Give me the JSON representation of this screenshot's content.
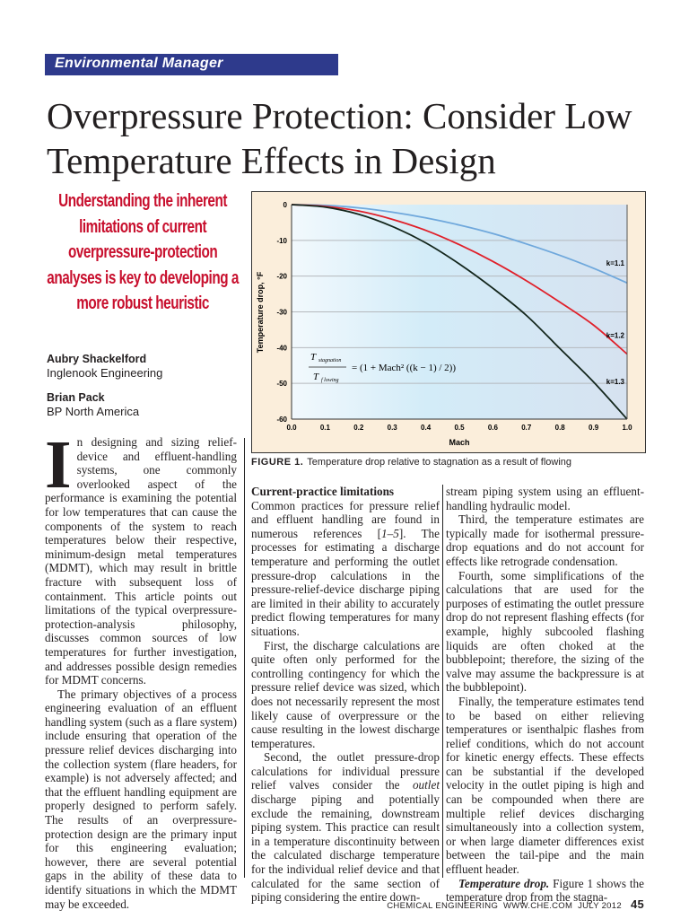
{
  "section_banner": "Environmental Manager",
  "title": "Overpressure Protection: Consider Low Temperature Effects in Design",
  "deck": "Understanding the inherent limitations of current overpressure-protection analyses is key to developing a more robust heuristic",
  "authors": [
    {
      "name": "Aubry Shackelford",
      "affiliation": "Inglenook Engineering"
    },
    {
      "name": "Brian Pack",
      "affiliation": "BP North America"
    }
  ],
  "figure": {
    "label": "FIGURE 1.",
    "caption": "Temperature drop relative to stagnation as a result of flowing",
    "equation": {
      "lhs_num": "T",
      "lhs_num_sub": "stagnation",
      "lhs_den": "T",
      "lhs_den_sub": "f lowing",
      "rhs": "= (1 + Mach² ((k − 1) / 2))"
    }
  },
  "chart_data": {
    "type": "line",
    "title": "",
    "xlabel": "Mach",
    "ylabel": "Temperature drop, °F",
    "xlim": [
      0.0,
      1.0
    ],
    "ylim": [
      -60,
      0
    ],
    "xticks": [
      "0.0",
      "0.1",
      "0.2",
      "0.3",
      "0.4",
      "0.5",
      "0.6",
      "0.7",
      "0.8",
      "0.9",
      "1.0"
    ],
    "yticks": [
      "0",
      "-10",
      "-20",
      "-30",
      "-40",
      "-50",
      "-60"
    ],
    "grid": "horizontal",
    "x": [
      0.0,
      0.1,
      0.2,
      0.3,
      0.4,
      0.5,
      0.6,
      0.7,
      0.8,
      0.9,
      1.0
    ],
    "series": [
      {
        "name": "k=1.1",
        "color": "#6fa8dc",
        "values": [
          0,
          -0.2,
          -0.9,
          -2.1,
          -3.7,
          -5.7,
          -8.1,
          -11.0,
          -14.2,
          -17.8,
          -21.9
        ]
      },
      {
        "name": "k=1.2",
        "color": "#e0202a",
        "values": [
          0,
          -0.5,
          -1.8,
          -4.1,
          -7.2,
          -11.2,
          -15.9,
          -21.3,
          -27.3,
          -33.7,
          -41.8
        ]
      },
      {
        "name": "k=1.3",
        "color": "#13261c",
        "values": [
          0,
          -0.7,
          -2.7,
          -6.1,
          -10.7,
          -16.6,
          -23.4,
          -31.0,
          -40.3,
          -49.6,
          -60.0
        ]
      }
    ]
  },
  "body": {
    "dropcap": "I",
    "col1": [
      [
        {
          "t": "n designing and sizing relief-device and effluent-handling systems, one commonly overlooked aspect of the performance is examining the potential for low temperatures that can cause the components of the system to reach temperatures below their respective, minimum-design metal temperatures (MDMT), which may result in brittle fracture with subsequent loss of containment. This article points out limitations of the typical overpressure-protection-analysis philosophy, discusses common sources of low temperatures for further investigation, and addresses possible design remedies for MDMT concerns."
        }
      ],
      [
        {
          "t": "The primary objectives of a process engineering evaluation of an effluent handling system (such as a flare system) include ensuring that operation of the pressure relief devices discharging into the collection system (flare headers, for example) is not adversely affected; and that the effluent handling equipment are properly designed to perform safely. The results of an overpressure-protection design are the primary input for this engineering evaluation; however, there are several potential gaps in the ability of these data to identify situations in which the MDMT may be exceeded."
        }
      ]
    ],
    "col2_heading": "Current-practice limitations",
    "col2": [
      [
        {
          "t": "Common practices for pressure relief and effluent handling are found in numerous references ["
        },
        {
          "t": "1–5",
          "i": true
        },
        {
          "t": "]. The processes for estimating a discharge temperature and performing the outlet pressure-drop calculations in the pressure-relief-device discharge piping are limited in their ability to accurately predict flowing temperatures for many situations."
        }
      ],
      [
        {
          "t": "First, the discharge calculations are quite often only performed for the controlling contingency for which the pressure relief device was sized, which does not necessarily represent the most likely cause of overpressure or the cause resulting in the lowest discharge temperatures."
        }
      ],
      [
        {
          "t": "Second, the outlet pressure-drop calculations for individual pressure relief valves consider the "
        },
        {
          "t": "outlet",
          "i": true
        },
        {
          "t": " discharge piping and potentially exclude the remaining, downstream piping system. This practice can result in a temperature discontinuity between the calculated discharge temperature for the individual relief device and that calculated for the same section of piping considering the entire down-"
        }
      ]
    ],
    "col3": [
      [
        {
          "t": "stream piping system using an effluent-handling hydraulic model."
        }
      ],
      [
        {
          "t": "Third, the temperature estimates are typically made for isothermal pressure-drop equations and do not account for effects like retrograde condensation."
        }
      ],
      [
        {
          "t": "Fourth, some simplifications of the calculations that are used for the purposes of estimating the outlet pressure drop do not represent flashing effects (for example, highly subcooled flashing liquids are often choked at the bubblepoint; therefore, the sizing of the valve may assume the backpressure is at the bubblepoint)."
        }
      ],
      [
        {
          "t": "Finally, the temperature estimates tend to be based on either relieving temperatures or isenthalpic flashes from relief conditions, which do not account for kinetic energy effects. These effects can be substantial if the developed velocity in the outlet piping is high and can be compounded when there are multiple relief devices discharging simultaneously into a collection system, or when large diameter differences exist between the tail-pipe and the main effluent header."
        }
      ],
      [
        {
          "t": "Temperature drop.",
          "b": true
        },
        {
          "t": " Figure 1 shows the temperature drop from the stagna-"
        }
      ]
    ]
  },
  "footer": {
    "publication": "CHEMICAL ENGINEERING",
    "website": "WWW.CHE.COM",
    "date": "JULY 2012",
    "page": "45"
  }
}
